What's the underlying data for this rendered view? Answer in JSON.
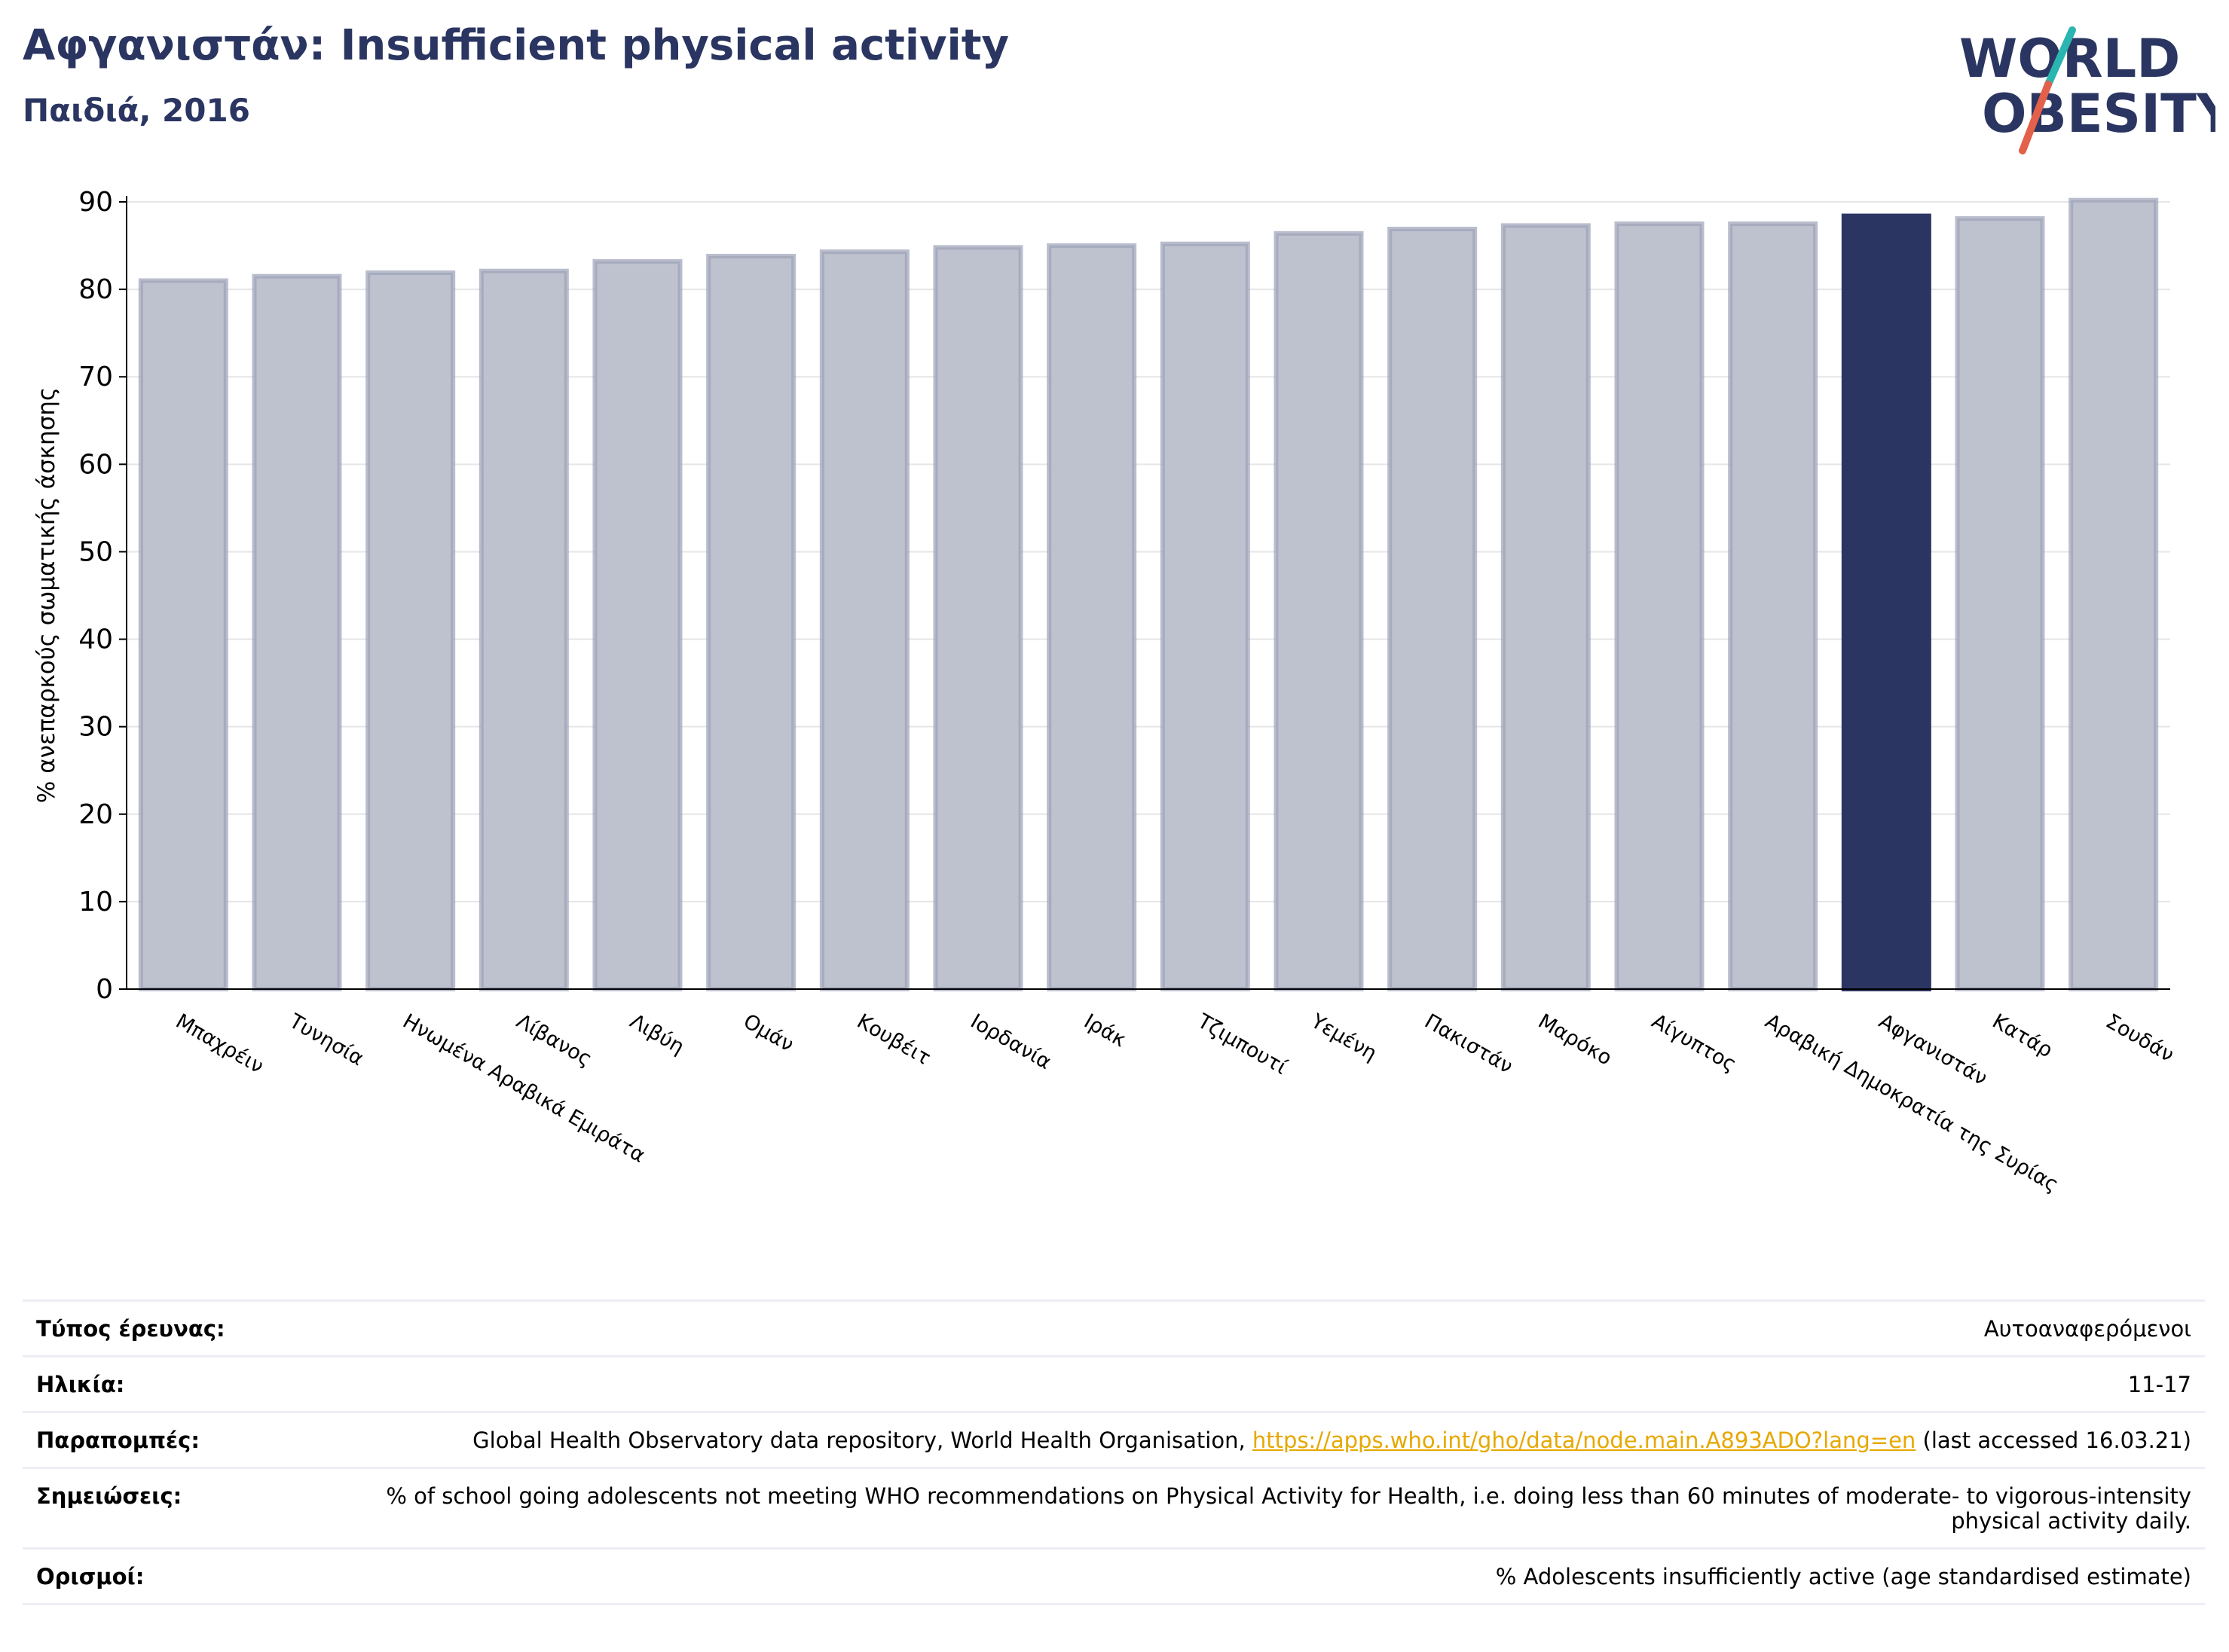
{
  "header": {
    "title": "Αφγανιστάν: Insufficient physical activity",
    "subtitle": "Παιδιά, 2016",
    "logo_line1": "WORLD",
    "logo_line2": "OBESITY"
  },
  "chart_data": {
    "type": "bar",
    "title": "Αφγανιστάν: Insufficient physical activity",
    "subtitle": "Παιδιά, 2016",
    "ylabel": "% ανεπαρκούς σωματικής άσκησης",
    "xlabel": "",
    "ylim": [
      0,
      90
    ],
    "yticks": [
      0,
      10,
      20,
      30,
      40,
      50,
      60,
      70,
      80,
      90
    ],
    "grid": true,
    "categories": [
      "Μπαχρέιν",
      "Τυνησία",
      "Ηνωμένα Αραβικά Εμιράτα",
      "Λίβανος",
      "Λιβύη",
      "Ομάν",
      "Κουβέιτ",
      "Ιορδανία",
      "Ιράκ",
      "Τζιμπουτί",
      "Υεμένη",
      "Πακιστάν",
      "Μαρόκο",
      "Αίγυπτος",
      "Αραβική Δημοκρατία της Συρίας",
      "Αφγανιστάν",
      "Κατάρ",
      "Σουδάν"
    ],
    "values": [
      81.0,
      81.5,
      81.9,
      82.1,
      83.2,
      83.8,
      84.3,
      84.8,
      85.0,
      85.2,
      86.4,
      86.9,
      87.3,
      87.5,
      87.5,
      88.4,
      88.1,
      90.2
    ],
    "highlight": "Αφγανιστάν",
    "colors": {
      "bar": "#bec1ce",
      "bar_edge": "#9ba1b8",
      "highlight": "#2a3561",
      "grid": "#e6e6e6",
      "axis": "#000000"
    }
  },
  "info": {
    "survey_type": {
      "label": "Τύπος έρευνας:",
      "value": "Αυτοαναφερόμενοι"
    },
    "age": {
      "label": "Ηλικία:",
      "value": "11-17"
    },
    "references": {
      "label": "Παραπομπές:",
      "value_prefix": "Global Health Observatory data repository, World Health Organisation,",
      "link": "https://apps.who.int/gho/data/node.main.A893ADO?lang=en",
      "value_suffix": "(last accessed 16.03.21)"
    },
    "notes": {
      "label": "Σημειώσεις:",
      "value": "% of school going adolescents not meeting WHO recommendations on Physical Activity for Health, i.e. doing less than 60 minutes of moderate- to vigorous-intensity physical activity daily."
    },
    "definitions": {
      "label": "Ορισμοί:",
      "value": "% Adolescents insufficiently active (age standardised estimate)"
    }
  }
}
